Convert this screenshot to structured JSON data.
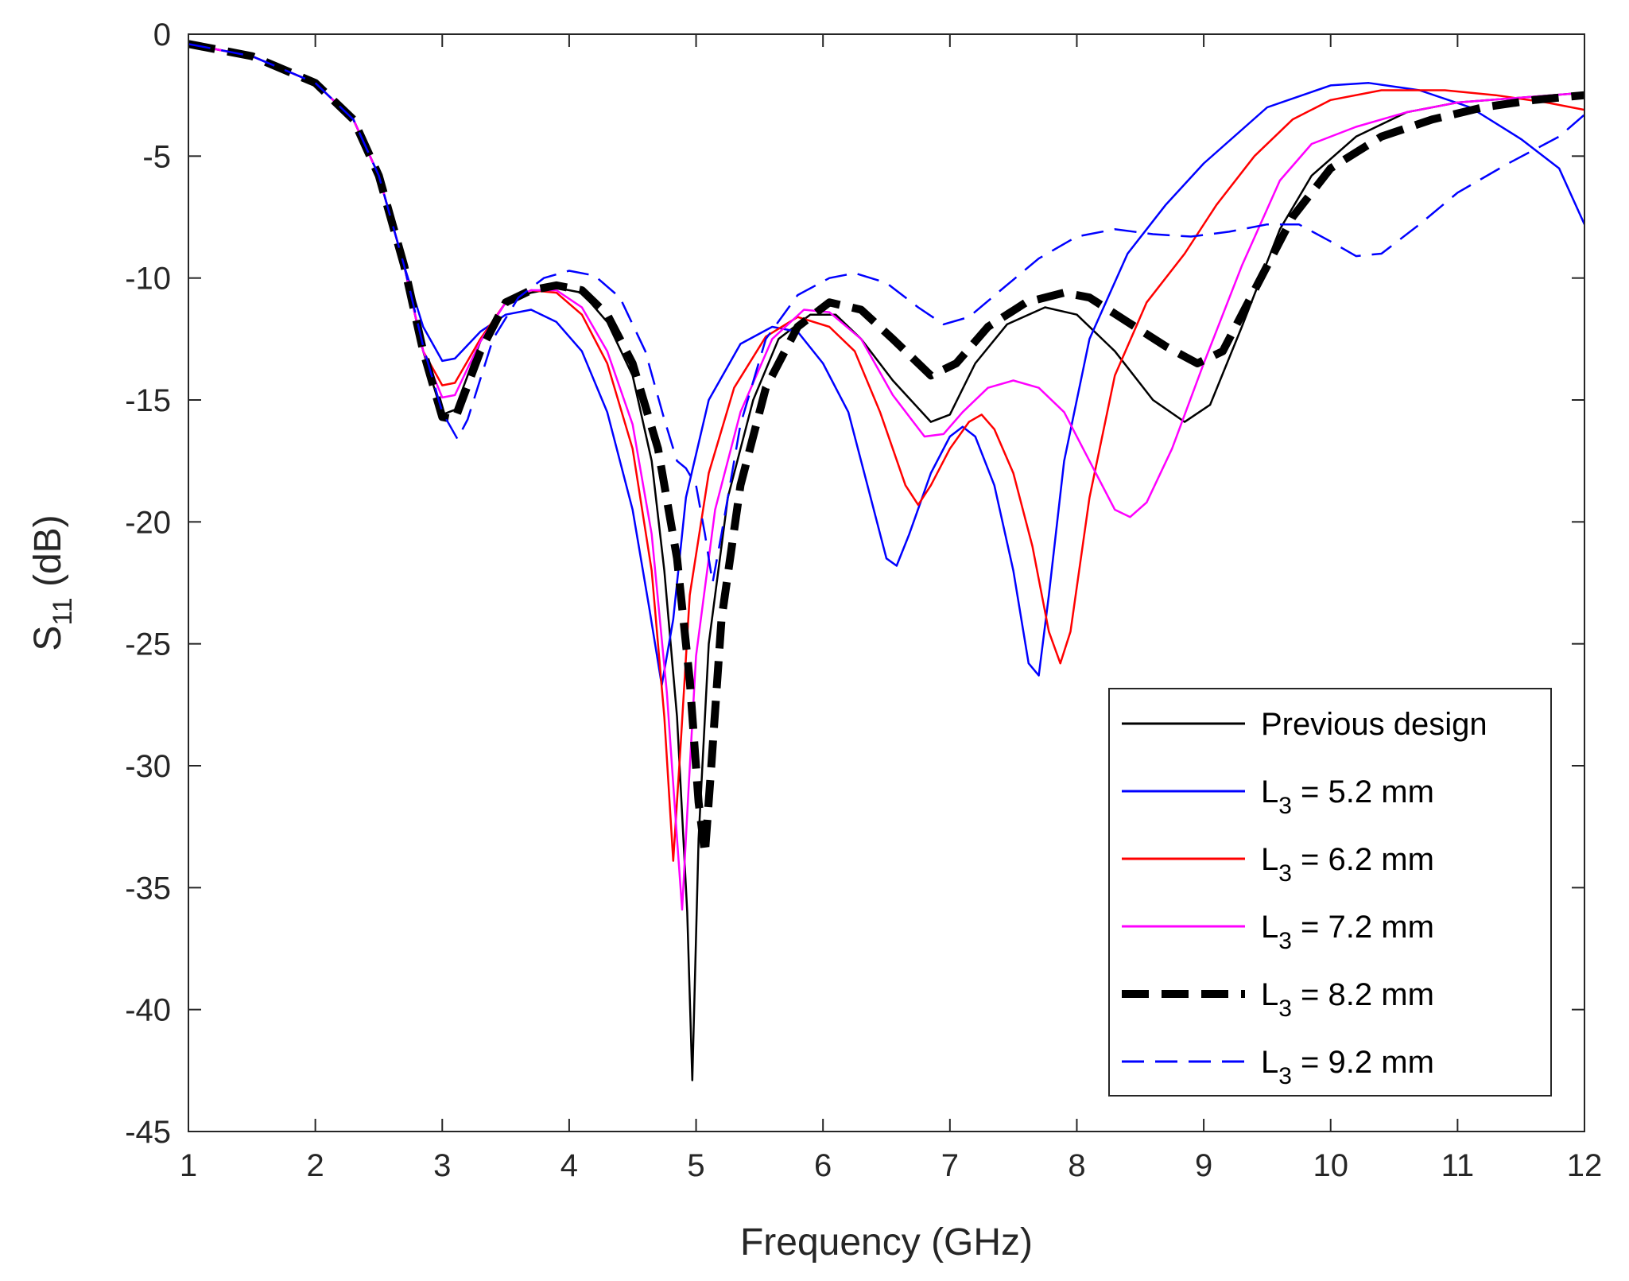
{
  "chart_data": {
    "type": "line",
    "title": "",
    "xlabel": "Frequency (GHz)",
    "ylabel": {
      "main": "S",
      "sub": "11",
      "unit": " (dB)"
    },
    "xlim": [
      1,
      12
    ],
    "ylim": [
      -45,
      0
    ],
    "xticks": [
      1,
      2,
      3,
      4,
      5,
      6,
      7,
      8,
      9,
      10,
      11,
      12
    ],
    "yticks": [
      0,
      -5,
      -10,
      -15,
      -20,
      -25,
      -30,
      -35,
      -40,
      -45
    ],
    "grid": false,
    "legend_position": "bottom-right",
    "series": [
      {
        "name": "Previous design",
        "label_main": "Previous design",
        "label_sub": "",
        "label_rest": "",
        "color": "#000000",
        "style": "solid",
        "points": [
          [
            1,
            -0.4
          ],
          [
            1.5,
            -0.9
          ],
          [
            2,
            -2.0
          ],
          [
            2.3,
            -3.5
          ],
          [
            2.5,
            -5.8
          ],
          [
            2.7,
            -9.5
          ],
          [
            2.85,
            -13.0
          ],
          [
            3.0,
            -15.6
          ],
          [
            3.1,
            -15.4
          ],
          [
            3.3,
            -12.6
          ],
          [
            3.5,
            -11.0
          ],
          [
            3.7,
            -10.6
          ],
          [
            3.9,
            -10.4
          ],
          [
            4.1,
            -10.6
          ],
          [
            4.3,
            -11.8
          ],
          [
            4.5,
            -14.0
          ],
          [
            4.65,
            -17.5
          ],
          [
            4.75,
            -22.0
          ],
          [
            4.85,
            -28.0
          ],
          [
            4.93,
            -36.0
          ],
          [
            4.97,
            -42.9
          ],
          [
            5.02,
            -33.0
          ],
          [
            5.1,
            -25.0
          ],
          [
            5.25,
            -19.0
          ],
          [
            5.45,
            -15.0
          ],
          [
            5.65,
            -12.5
          ],
          [
            5.9,
            -11.5
          ],
          [
            6.1,
            -11.5
          ],
          [
            6.3,
            -12.5
          ],
          [
            6.55,
            -14.2
          ],
          [
            6.85,
            -15.9
          ],
          [
            7.0,
            -15.6
          ],
          [
            7.2,
            -13.5
          ],
          [
            7.45,
            -11.9
          ],
          [
            7.75,
            -11.2
          ],
          [
            8.0,
            -11.5
          ],
          [
            8.3,
            -13.0
          ],
          [
            8.6,
            -15.0
          ],
          [
            8.85,
            -15.9
          ],
          [
            9.05,
            -15.2
          ],
          [
            9.3,
            -12.0
          ],
          [
            9.6,
            -8.0
          ],
          [
            9.85,
            -5.8
          ],
          [
            10.2,
            -4.2
          ],
          [
            10.6,
            -3.2
          ],
          [
            11.0,
            -2.8
          ],
          [
            11.5,
            -2.6
          ],
          [
            12.0,
            -2.4
          ]
        ]
      },
      {
        "name": "L3 = 5.2 mm",
        "label_main": "L",
        "label_sub": "3",
        "label_rest": " = 5.2 mm",
        "color": "#0000ff",
        "style": "solid",
        "points": [
          [
            1,
            -0.4
          ],
          [
            1.5,
            -0.9
          ],
          [
            2,
            -2.0
          ],
          [
            2.3,
            -3.5
          ],
          [
            2.5,
            -5.8
          ],
          [
            2.7,
            -9.5
          ],
          [
            2.85,
            -12.0
          ],
          [
            3.0,
            -13.4
          ],
          [
            3.1,
            -13.3
          ],
          [
            3.3,
            -12.2
          ],
          [
            3.5,
            -11.5
          ],
          [
            3.7,
            -11.3
          ],
          [
            3.9,
            -11.8
          ],
          [
            4.1,
            -13.0
          ],
          [
            4.3,
            -15.5
          ],
          [
            4.5,
            -19.5
          ],
          [
            4.63,
            -23.5
          ],
          [
            4.73,
            -26.7
          ],
          [
            4.82,
            -24.0
          ],
          [
            4.92,
            -19.0
          ],
          [
            5.1,
            -15.0
          ],
          [
            5.35,
            -12.7
          ],
          [
            5.6,
            -12.0
          ],
          [
            5.8,
            -12.2
          ],
          [
            6.0,
            -13.5
          ],
          [
            6.2,
            -15.5
          ],
          [
            6.35,
            -18.5
          ],
          [
            6.5,
            -21.5
          ],
          [
            6.58,
            -21.8
          ],
          [
            6.68,
            -20.5
          ],
          [
            6.85,
            -18.0
          ],
          [
            7.0,
            -16.5
          ],
          [
            7.1,
            -16.1
          ],
          [
            7.2,
            -16.5
          ],
          [
            7.35,
            -18.5
          ],
          [
            7.5,
            -22.0
          ],
          [
            7.62,
            -25.8
          ],
          [
            7.7,
            -26.3
          ],
          [
            7.78,
            -23.0
          ],
          [
            7.9,
            -17.5
          ],
          [
            8.1,
            -12.5
          ],
          [
            8.4,
            -9.0
          ],
          [
            8.7,
            -7.0
          ],
          [
            9.0,
            -5.3
          ],
          [
            9.5,
            -3.0
          ],
          [
            10.0,
            -2.1
          ],
          [
            10.3,
            -2.0
          ],
          [
            10.7,
            -2.3
          ],
          [
            11.1,
            -3.0
          ],
          [
            11.5,
            -4.3
          ],
          [
            11.8,
            -5.5
          ],
          [
            12.0,
            -7.8
          ]
        ]
      },
      {
        "name": "L3 = 6.2 mm",
        "label_main": "L",
        "label_sub": "3",
        "label_rest": " = 6.2 mm",
        "color": "#ff0000",
        "style": "solid",
        "points": [
          [
            1,
            -0.4
          ],
          [
            1.5,
            -0.9
          ],
          [
            2,
            -2.0
          ],
          [
            2.3,
            -3.5
          ],
          [
            2.5,
            -5.8
          ],
          [
            2.7,
            -9.5
          ],
          [
            2.85,
            -13.0
          ],
          [
            3.0,
            -14.4
          ],
          [
            3.1,
            -14.3
          ],
          [
            3.3,
            -12.5
          ],
          [
            3.5,
            -11.0
          ],
          [
            3.7,
            -10.5
          ],
          [
            3.9,
            -10.6
          ],
          [
            4.1,
            -11.5
          ],
          [
            4.3,
            -13.5
          ],
          [
            4.5,
            -17.0
          ],
          [
            4.65,
            -22.0
          ],
          [
            4.75,
            -28.0
          ],
          [
            4.82,
            -33.9
          ],
          [
            4.88,
            -29.0
          ],
          [
            4.95,
            -23.0
          ],
          [
            5.1,
            -18.0
          ],
          [
            5.3,
            -14.5
          ],
          [
            5.55,
            -12.4
          ],
          [
            5.8,
            -11.6
          ],
          [
            6.05,
            -12.0
          ],
          [
            6.25,
            -13.0
          ],
          [
            6.45,
            -15.5
          ],
          [
            6.65,
            -18.5
          ],
          [
            6.75,
            -19.3
          ],
          [
            6.85,
            -18.5
          ],
          [
            7.0,
            -17.0
          ],
          [
            7.15,
            -15.9
          ],
          [
            7.25,
            -15.6
          ],
          [
            7.35,
            -16.2
          ],
          [
            7.5,
            -18.0
          ],
          [
            7.65,
            -21.0
          ],
          [
            7.78,
            -24.5
          ],
          [
            7.87,
            -25.8
          ],
          [
            7.95,
            -24.5
          ],
          [
            8.1,
            -19.0
          ],
          [
            8.3,
            -14.0
          ],
          [
            8.55,
            -11.0
          ],
          [
            8.85,
            -9.0
          ],
          [
            9.1,
            -7.0
          ],
          [
            9.4,
            -5.0
          ],
          [
            9.7,
            -3.5
          ],
          [
            10.0,
            -2.7
          ],
          [
            10.4,
            -2.3
          ],
          [
            10.9,
            -2.3
          ],
          [
            11.3,
            -2.5
          ],
          [
            11.7,
            -2.8
          ],
          [
            12.0,
            -3.1
          ]
        ]
      },
      {
        "name": "L3 = 7.2 mm",
        "label_main": "L",
        "label_sub": "3",
        "label_rest": " = 7.2 mm",
        "color": "#ff00ff",
        "style": "solid",
        "points": [
          [
            1,
            -0.4
          ],
          [
            1.5,
            -0.9
          ],
          [
            2,
            -2.0
          ],
          [
            2.3,
            -3.5
          ],
          [
            2.5,
            -5.8
          ],
          [
            2.7,
            -9.5
          ],
          [
            2.85,
            -13.0
          ],
          [
            3.0,
            -14.9
          ],
          [
            3.1,
            -14.8
          ],
          [
            3.3,
            -12.6
          ],
          [
            3.5,
            -11.0
          ],
          [
            3.7,
            -10.5
          ],
          [
            3.9,
            -10.5
          ],
          [
            4.1,
            -11.2
          ],
          [
            4.3,
            -13.0
          ],
          [
            4.5,
            -16.0
          ],
          [
            4.65,
            -20.5
          ],
          [
            4.77,
            -27.0
          ],
          [
            4.85,
            -33.0
          ],
          [
            4.89,
            -35.9
          ],
          [
            4.94,
            -31.0
          ],
          [
            5.0,
            -25.5
          ],
          [
            5.15,
            -19.5
          ],
          [
            5.35,
            -15.5
          ],
          [
            5.6,
            -12.5
          ],
          [
            5.85,
            -11.3
          ],
          [
            6.05,
            -11.4
          ],
          [
            6.3,
            -12.5
          ],
          [
            6.55,
            -14.8
          ],
          [
            6.8,
            -16.5
          ],
          [
            6.95,
            -16.4
          ],
          [
            7.1,
            -15.5
          ],
          [
            7.3,
            -14.5
          ],
          [
            7.5,
            -14.2
          ],
          [
            7.7,
            -14.5
          ],
          [
            7.9,
            -15.5
          ],
          [
            8.1,
            -17.5
          ],
          [
            8.3,
            -19.5
          ],
          [
            8.42,
            -19.8
          ],
          [
            8.55,
            -19.2
          ],
          [
            8.75,
            -17.0
          ],
          [
            9.0,
            -13.5
          ],
          [
            9.3,
            -9.5
          ],
          [
            9.6,
            -6.0
          ],
          [
            9.85,
            -4.5
          ],
          [
            10.2,
            -3.8
          ],
          [
            10.6,
            -3.2
          ],
          [
            11.0,
            -2.8
          ],
          [
            11.5,
            -2.6
          ],
          [
            12.0,
            -2.4
          ]
        ]
      },
      {
        "name": "L3 = 8.2 mm",
        "label_main": "L",
        "label_sub": "3",
        "label_rest": " = 8.2 mm",
        "color": "#000000",
        "style": "thickdash",
        "points": [
          [
            1,
            -0.4
          ],
          [
            1.5,
            -0.9
          ],
          [
            2,
            -2.0
          ],
          [
            2.3,
            -3.5
          ],
          [
            2.5,
            -5.8
          ],
          [
            2.7,
            -9.5
          ],
          [
            2.85,
            -13.0
          ],
          [
            3.0,
            -15.7
          ],
          [
            3.1,
            -15.8
          ],
          [
            3.3,
            -13.0
          ],
          [
            3.5,
            -11.0
          ],
          [
            3.7,
            -10.5
          ],
          [
            3.9,
            -10.3
          ],
          [
            4.1,
            -10.5
          ],
          [
            4.3,
            -11.5
          ],
          [
            4.5,
            -13.5
          ],
          [
            4.7,
            -17.0
          ],
          [
            4.85,
            -21.5
          ],
          [
            4.95,
            -26.5
          ],
          [
            5.02,
            -31.5
          ],
          [
            5.07,
            -33.6
          ],
          [
            5.12,
            -30.0
          ],
          [
            5.2,
            -24.0
          ],
          [
            5.35,
            -18.5
          ],
          [
            5.55,
            -14.5
          ],
          [
            5.8,
            -12.0
          ],
          [
            6.05,
            -11.0
          ],
          [
            6.3,
            -11.3
          ],
          [
            6.55,
            -12.5
          ],
          [
            6.85,
            -14.0
          ],
          [
            7.05,
            -13.5
          ],
          [
            7.3,
            -12.0
          ],
          [
            7.6,
            -11.0
          ],
          [
            7.9,
            -10.6
          ],
          [
            8.1,
            -10.8
          ],
          [
            8.4,
            -11.8
          ],
          [
            8.7,
            -12.8
          ],
          [
            8.95,
            -13.5
          ],
          [
            9.15,
            -13.0
          ],
          [
            9.4,
            -10.5
          ],
          [
            9.7,
            -7.5
          ],
          [
            10.0,
            -5.5
          ],
          [
            10.4,
            -4.2
          ],
          [
            10.8,
            -3.5
          ],
          [
            11.2,
            -3.0
          ],
          [
            11.6,
            -2.7
          ],
          [
            12.0,
            -2.5
          ]
        ]
      },
      {
        "name": "L3 = 9.2 mm",
        "label_main": "L",
        "label_sub": "3",
        "label_rest": " = 9.2 mm",
        "color": "#0000ff",
        "style": "dash",
        "points": [
          [
            1,
            -0.4
          ],
          [
            1.5,
            -0.9
          ],
          [
            2,
            -2.0
          ],
          [
            2.3,
            -3.5
          ],
          [
            2.5,
            -5.8
          ],
          [
            2.7,
            -9.5
          ],
          [
            2.85,
            -12.8
          ],
          [
            3.0,
            -15.5
          ],
          [
            3.12,
            -16.6
          ],
          [
            3.2,
            -15.8
          ],
          [
            3.4,
            -12.5
          ],
          [
            3.6,
            -10.8
          ],
          [
            3.8,
            -10.0
          ],
          [
            4.0,
            -9.7
          ],
          [
            4.2,
            -9.9
          ],
          [
            4.4,
            -10.8
          ],
          [
            4.6,
            -13.0
          ],
          [
            4.75,
            -15.8
          ],
          [
            4.85,
            -17.5
          ],
          [
            4.92,
            -17.8
          ],
          [
            5.0,
            -18.5
          ],
          [
            5.07,
            -20.5
          ],
          [
            5.13,
            -22.5
          ],
          [
            5.2,
            -20.5
          ],
          [
            5.35,
            -16.0
          ],
          [
            5.55,
            -12.5
          ],
          [
            5.8,
            -10.7
          ],
          [
            6.05,
            -10.0
          ],
          [
            6.25,
            -9.8
          ],
          [
            6.5,
            -10.2
          ],
          [
            6.75,
            -11.2
          ],
          [
            6.95,
            -11.9
          ],
          [
            7.15,
            -11.6
          ],
          [
            7.4,
            -10.5
          ],
          [
            7.7,
            -9.2
          ],
          [
            8.0,
            -8.3
          ],
          [
            8.3,
            -8.0
          ],
          [
            8.6,
            -8.2
          ],
          [
            8.9,
            -8.3
          ],
          [
            9.2,
            -8.1
          ],
          [
            9.5,
            -7.8
          ],
          [
            9.75,
            -7.8
          ],
          [
            10.0,
            -8.5
          ],
          [
            10.2,
            -9.1
          ],
          [
            10.4,
            -9.0
          ],
          [
            10.7,
            -7.8
          ],
          [
            11.0,
            -6.5
          ],
          [
            11.4,
            -5.3
          ],
          [
            11.8,
            -4.2
          ],
          [
            12.0,
            -3.3
          ]
        ]
      }
    ]
  }
}
